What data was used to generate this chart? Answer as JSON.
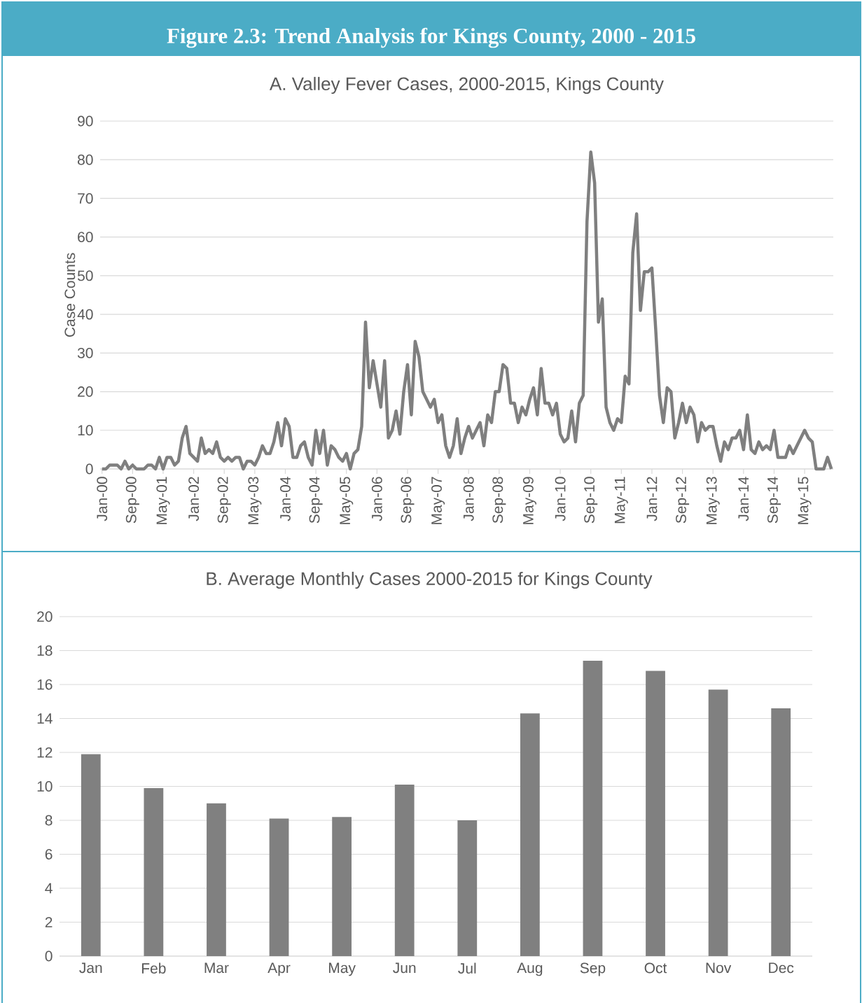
{
  "chart_data": [
    {
      "type": "line",
      "title": "**Figure 2.3: Trend Analysis for Kings County, 2000 - 2015**",
      "subtitle": "A. Valley Fever Cases, 2000-2015, Kings County",
      "ylabel": "Case Counts",
      "color": "#7f7f7f",
      "ylim": [
        0,
        90
      ],
      "yticks": [
        0,
        10,
        20,
        30,
        40,
        50,
        60,
        70,
        80,
        90
      ],
      "grid": "y",
      "categories": [
        "Jan-00",
        null,
        null,
        null,
        null,
        null,
        null,
        null,
        "Sep-00",
        null,
        null,
        null,
        null,
        null,
        null,
        null,
        "May-01",
        null,
        null,
        null,
        null,
        null,
        null,
        null,
        "Jan-02",
        null,
        null,
        null,
        null,
        null,
        null,
        null,
        "Sep-02",
        null,
        null,
        null,
        null,
        null,
        null,
        null,
        "May-03",
        null,
        null,
        null,
        null,
        null,
        null,
        null,
        "Jan-04",
        null,
        null,
        null,
        null,
        null,
        null,
        null,
        "Sep-04",
        null,
        null,
        null,
        null,
        null,
        null,
        null,
        "May-05",
        null,
        null,
        null,
        null,
        null,
        null,
        null,
        "Jan-06",
        null,
        null,
        null,
        null,
        null,
        null,
        null,
        "Sep-06",
        null,
        null,
        null,
        null,
        null,
        null,
        null,
        "May-07",
        null,
        null,
        null,
        null,
        null,
        null,
        null,
        "Jan-08",
        null,
        null,
        null,
        null,
        null,
        null,
        null,
        "Sep-08",
        null,
        null,
        null,
        null,
        null,
        null,
        null,
        "May-09",
        null,
        null,
        null,
        null,
        null,
        null,
        null,
        "Jan-10",
        null,
        null,
        null,
        null,
        null,
        null,
        null,
        "Sep-10",
        null,
        null,
        null,
        null,
        null,
        null,
        null,
        "May-11",
        null,
        null,
        null,
        null,
        null,
        null,
        null,
        "Jan-12",
        null,
        null,
        null,
        null,
        null,
        null,
        null,
        "Sep-12",
        null,
        null,
        null,
        null,
        null,
        null,
        null,
        "May-13",
        null,
        null,
        null,
        null,
        null,
        null,
        null,
        "Jan-14",
        null,
        null,
        null,
        null,
        null,
        null,
        null,
        "Sep-14",
        null,
        null,
        null,
        null,
        null,
        null,
        null,
        "May-15",
        null,
        null,
        null,
        null,
        null,
        null,
        null
      ],
      "values": [
        0,
        0,
        1,
        1,
        1,
        0,
        2,
        0,
        1,
        0,
        0,
        0,
        1,
        1,
        0,
        3,
        0,
        3,
        3,
        1,
        2,
        8,
        11,
        4,
        3,
        2,
        8,
        4,
        5,
        4,
        7,
        3,
        2,
        3,
        2,
        3,
        3,
        0,
        2,
        2,
        1,
        3,
        6,
        4,
        4,
        7,
        12,
        6,
        13,
        11,
        3,
        3,
        6,
        7,
        3,
        1,
        10,
        4,
        10,
        1,
        6,
        5,
        3,
        2,
        4,
        0,
        4,
        5,
        11,
        38,
        21,
        28,
        22,
        16,
        28,
        8,
        10,
        15,
        9,
        20,
        27,
        14,
        33,
        29,
        20,
        18,
        16,
        18,
        12,
        14,
        6,
        3,
        6,
        13,
        4,
        8,
        11,
        8,
        10,
        12,
        6,
        14,
        12,
        20,
        20,
        27,
        26,
        17,
        17,
        12,
        16,
        14,
        18,
        21,
        14,
        26,
        17,
        17,
        14,
        17,
        9,
        7,
        8,
        15,
        7,
        17,
        19,
        64,
        82,
        74,
        38,
        44,
        16,
        12,
        10,
        13,
        12,
        24,
        22,
        56,
        66,
        41,
        51,
        51,
        52,
        36,
        19,
        12,
        21,
        20,
        8,
        12,
        17,
        12,
        16,
        14,
        7,
        12,
        10,
        11,
        11,
        6,
        2,
        7,
        5,
        8,
        8,
        10,
        5,
        14,
        5,
        4,
        7,
        5,
        6,
        5,
        10,
        3,
        3,
        3,
        6,
        4,
        6,
        8,
        10,
        8,
        7,
        0,
        0,
        0,
        3,
        0
      ]
    },
    {
      "type": "bar",
      "title": "B. Average Monthly Cases 2000-2015 for Kings County",
      "color": "#808080",
      "ylim": [
        0,
        20
      ],
      "yticks": [
        0,
        2,
        4,
        6,
        8,
        10,
        12,
        14,
        16,
        18,
        20
      ],
      "grid": "y",
      "categories": [
        "Jan",
        "Feb",
        "Mar",
        "Apr",
        "May",
        "Jun",
        "Jul",
        "Aug",
        "Sep",
        "Oct",
        "Nov",
        "Dec"
      ],
      "values": [
        11.9,
        9.9,
        9.0,
        8.1,
        8.2,
        10.1,
        8.0,
        14.3,
        17.4,
        16.8,
        15.7,
        14.6
      ]
    }
  ]
}
